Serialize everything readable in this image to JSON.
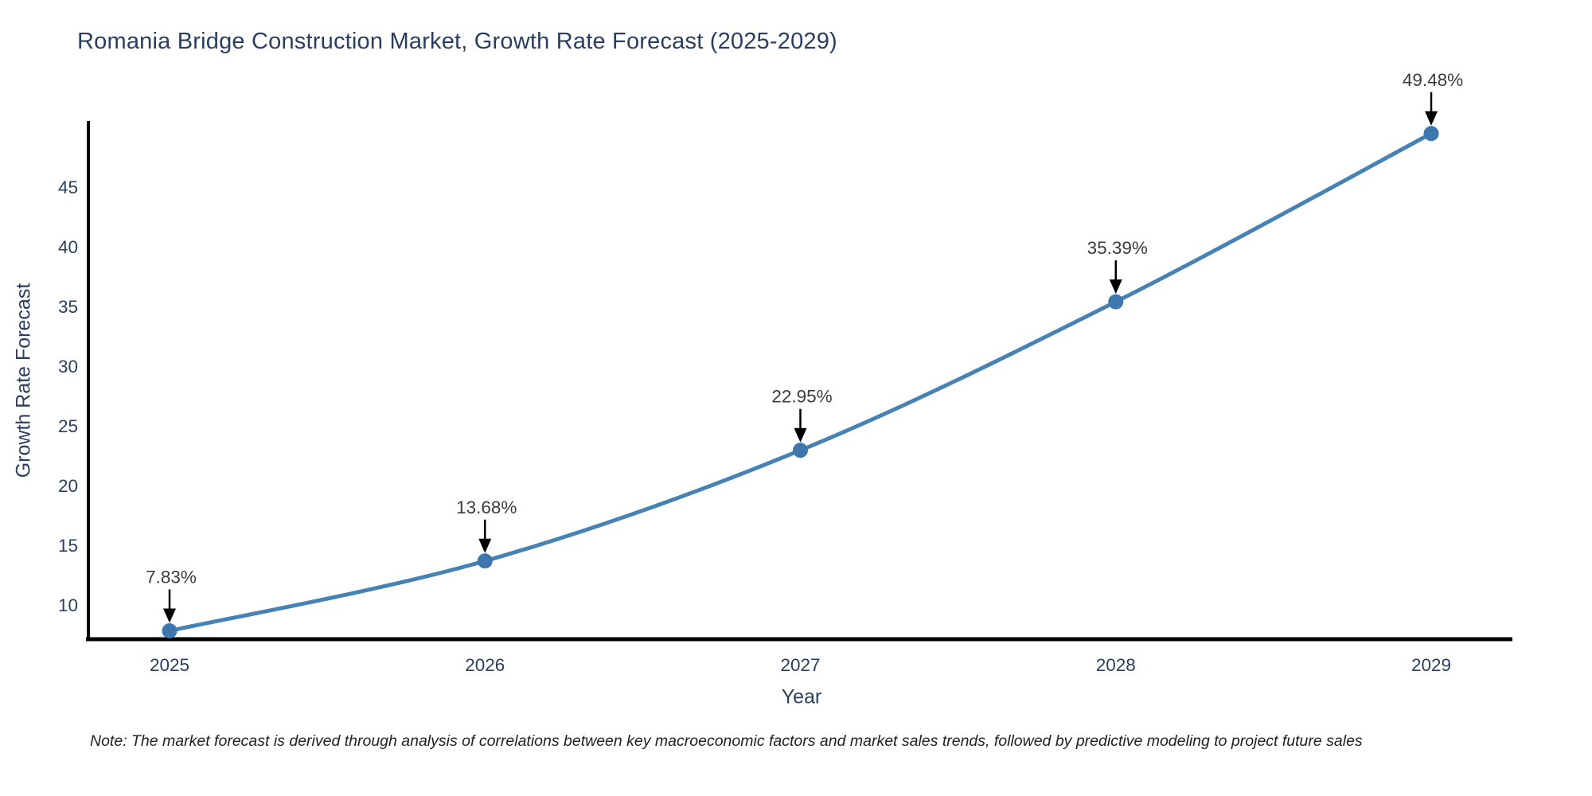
{
  "chart_data": {
    "type": "line",
    "title": "Romania Bridge Construction Market, Growth Rate Forecast (2025-2029)",
    "xlabel": "Year",
    "ylabel": "Growth Rate Forecast",
    "categories": [
      "2025",
      "2026",
      "2027",
      "2028",
      "2029"
    ],
    "values": [
      7.83,
      13.68,
      22.95,
      35.39,
      49.48
    ],
    "point_labels": [
      "7.83%",
      "13.68%",
      "22.95%",
      "35.39%",
      "49.48%"
    ],
    "y_ticks": [
      10,
      15,
      20,
      25,
      30,
      35,
      40,
      45
    ],
    "ylim": [
      7.13,
      50.53
    ],
    "grid": false,
    "legend": "none",
    "note": "Note: The market forecast is derived through analysis of correlations between key macroeconomic factors and market sales trends, followed by predictive modeling to project future sales",
    "colors": {
      "line": "#4682b4",
      "marker": "#3f76ad",
      "axis": "#000000",
      "tick_text": "#2a3f5f",
      "annotation_text": "#3b3b3b",
      "arrow": "#000000",
      "title_text": "#2a3f5f",
      "note_text": "#222222"
    }
  }
}
